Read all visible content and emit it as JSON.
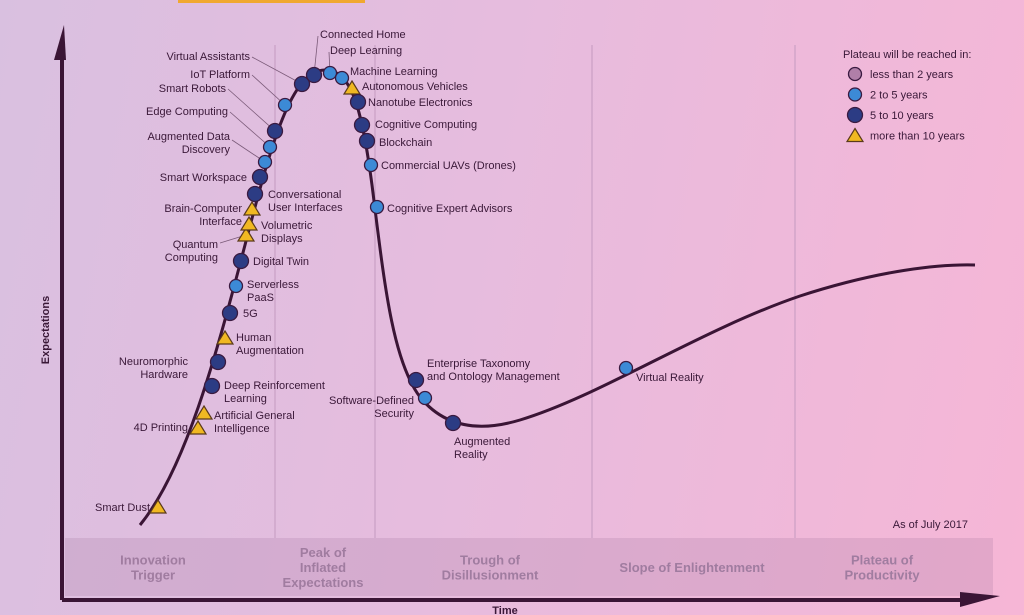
{
  "chart_data": {
    "type": "scatter",
    "style": "hype-cycle curve",
    "xlabel": "Time",
    "ylabel": "Expectations",
    "note": "As of July 2017",
    "legend": {
      "title": "Plateau will be reached in:",
      "placement": "top-right",
      "entries": [
        {
          "key": "lt2",
          "label": "less than 2 years",
          "marker": "circle",
          "color": "#b07fa8"
        },
        {
          "key": "2to5",
          "label": "2 to 5 years",
          "marker": "circle",
          "color": "#3c8ad6"
        },
        {
          "key": "5to10",
          "label": "5 to 10 years",
          "marker": "circle",
          "color": "#2c3c84"
        },
        {
          "key": "gt10",
          "label": "more than 10 years",
          "marker": "triangle",
          "color": "#f0b822"
        }
      ]
    },
    "phases": [
      {
        "lines": [
          "Innovation",
          "Trigger"
        ]
      },
      {
        "lines": [
          "Peak of",
          "Inflated",
          "Expectations"
        ]
      },
      {
        "lines": [
          "Trough of",
          "Disillusionment"
        ]
      },
      {
        "lines": [
          "Slope of Enlightenment"
        ]
      },
      {
        "lines": [
          "Plateau of",
          "Productivity"
        ]
      }
    ],
    "technologies": [
      {
        "lines": [
          "Smart Dust"
        ],
        "plateau": "gt10",
        "phase": "Innovation Trigger"
      },
      {
        "lines": [
          "4D Printing"
        ],
        "plateau": "gt10",
        "phase": "Innovation Trigger"
      },
      {
        "lines": [
          "Artificial General",
          "Intelligence"
        ],
        "plateau": "gt10",
        "phase": "Innovation Trigger"
      },
      {
        "lines": [
          "Deep Reinforcement",
          "Learning"
        ],
        "plateau": "5to10",
        "phase": "Innovation Trigger"
      },
      {
        "lines": [
          "Neuromorphic",
          "Hardware"
        ],
        "plateau": "5to10",
        "phase": "Innovation Trigger"
      },
      {
        "lines": [
          "Human",
          "Augmentation"
        ],
        "plateau": "gt10",
        "phase": "Innovation Trigger"
      },
      {
        "lines": [
          "5G"
        ],
        "plateau": "5to10",
        "phase": "Innovation Trigger"
      },
      {
        "lines": [
          "Serverless",
          "PaaS"
        ],
        "plateau": "2to5",
        "phase": "Innovation Trigger"
      },
      {
        "lines": [
          "Digital Twin"
        ],
        "plateau": "5to10",
        "phase": "Innovation Trigger"
      },
      {
        "lines": [
          "Quantum",
          "Computing"
        ],
        "plateau": "gt10",
        "phase": "Innovation Trigger"
      },
      {
        "lines": [
          "Volumetric",
          "Displays"
        ],
        "plateau": "gt10",
        "phase": "Innovation Trigger"
      },
      {
        "lines": [
          "Brain-Computer",
          "Interface"
        ],
        "plateau": "gt10",
        "phase": "Innovation Trigger"
      },
      {
        "lines": [
          "Conversational",
          "User Interfaces"
        ],
        "plateau": "5to10",
        "phase": "Innovation Trigger"
      },
      {
        "lines": [
          "Smart Workspace"
        ],
        "plateau": "5to10",
        "phase": "Innovation Trigger"
      },
      {
        "lines": [
          "Augmented Data",
          "Discovery"
        ],
        "plateau": "2to5",
        "phase": "Innovation Trigger"
      },
      {
        "lines": [
          "Edge Computing"
        ],
        "plateau": "2to5",
        "phase": "Innovation Trigger"
      },
      {
        "lines": [
          "Smart Robots"
        ],
        "plateau": "5to10",
        "phase": "Innovation Trigger"
      },
      {
        "lines": [
          "IoT Platform"
        ],
        "plateau": "2to5",
        "phase": "Peak of Inflated Expectations"
      },
      {
        "lines": [
          "Virtual Assistants"
        ],
        "plateau": "5to10",
        "phase": "Peak of Inflated Expectations"
      },
      {
        "lines": [
          "Connected Home"
        ],
        "plateau": "5to10",
        "phase": "Peak of Inflated Expectations"
      },
      {
        "lines": [
          "Deep Learning"
        ],
        "plateau": "2to5",
        "phase": "Peak of Inflated Expectations"
      },
      {
        "lines": [
          "Machine Learning"
        ],
        "plateau": "2to5",
        "phase": "Peak of Inflated Expectations"
      },
      {
        "lines": [
          "Autonomous Vehicles"
        ],
        "plateau": "gt10",
        "phase": "Peak of Inflated Expectations"
      },
      {
        "lines": [
          "Nanotube Electronics"
        ],
        "plateau": "5to10",
        "phase": "Peak of Inflated Expectations"
      },
      {
        "lines": [
          "Cognitive Computing"
        ],
        "plateau": "5to10",
        "phase": "Peak of Inflated Expectations"
      },
      {
        "lines": [
          "Blockchain"
        ],
        "plateau": "5to10",
        "phase": "Peak of Inflated Expectations"
      },
      {
        "lines": [
          "Commercial UAVs (Drones)"
        ],
        "plateau": "2to5",
        "phase": "Peak of Inflated Expectations"
      },
      {
        "lines": [
          "Cognitive Expert Advisors"
        ],
        "plateau": "2to5",
        "phase": "Peak of Inflated Expectations"
      },
      {
        "lines": [
          "Enterprise Taxonomy",
          "and Ontology Management"
        ],
        "plateau": "5to10",
        "phase": "Trough of Disillusionment"
      },
      {
        "lines": [
          "Software-Defined",
          "Security"
        ],
        "plateau": "2to5",
        "phase": "Trough of Disillusionment"
      },
      {
        "lines": [
          "Augmented",
          "Reality"
        ],
        "plateau": "5to10",
        "phase": "Trough of Disillusionment"
      },
      {
        "lines": [
          "Virtual Reality"
        ],
        "plateau": "2to5",
        "phase": "Slope of Enlightenment"
      }
    ]
  }
}
